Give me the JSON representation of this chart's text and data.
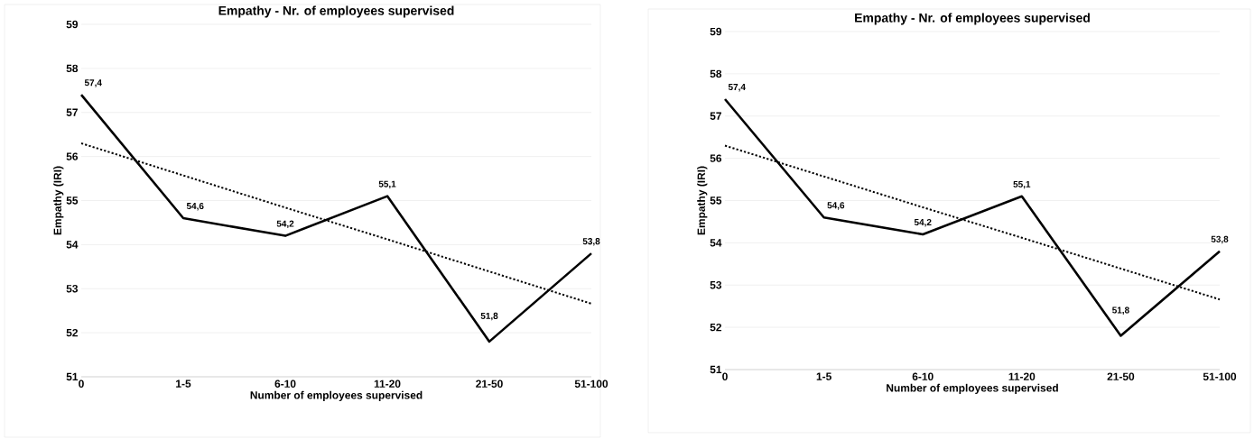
{
  "chart_data": [
    {
      "type": "line",
      "title": "Empathy - Nr. of employees supervised",
      "xlabel": "Number of employees supervised",
      "ylabel": "Empathy (IRI)",
      "categories": [
        "0",
        "1-5",
        "6-10",
        "11-20",
        "21-50",
        "51-100"
      ],
      "ylim": [
        51,
        59
      ],
      "yticks": [
        51,
        52,
        53,
        54,
        55,
        56,
        57,
        58,
        59
      ],
      "grid": "y",
      "marker": "none",
      "series": [
        {
          "color": "#000000",
          "line_style": "solid",
          "values": [
            57.4,
            54.6,
            54.2,
            55.1,
            51.8,
            53.8
          ],
          "value_labels": [
            "57,4",
            "54,6",
            "54,2",
            "55,1",
            "51,8",
            "53,8"
          ]
        },
        {
          "type": "line",
          "color": "#000000",
          "line_style": "dotted",
          "values": [
            56.3,
            55.57,
            54.84,
            54.12,
            53.39,
            52.66
          ]
        }
      ]
    },
    {
      "type": "line",
      "title": "Empathy - Nr. of employees supervised",
      "xlabel": "Number of employees supervised",
      "ylabel": "Empathy (IRI)",
      "categories": [
        "0",
        "1-5",
        "6-10",
        "11-20",
        "21-50",
        "51-100"
      ],
      "ylim": [
        51,
        59
      ],
      "yticks": [
        51,
        52,
        53,
        54,
        55,
        56,
        57,
        58,
        59
      ],
      "grid": "y",
      "marker": "none",
      "series": [
        {
          "color": "#000000",
          "line_style": "solid",
          "values": [
            57.4,
            54.6,
            54.2,
            55.1,
            51.8,
            53.8
          ],
          "value_labels": [
            "57,4",
            "54,6",
            "54,2",
            "55,1",
            "51,8",
            "53,8"
          ]
        },
        {
          "type": "line",
          "color": "#000000",
          "line_style": "dotted",
          "values": [
            56.3,
            55.57,
            54.84,
            54.12,
            53.39,
            52.66
          ]
        }
      ]
    }
  ]
}
